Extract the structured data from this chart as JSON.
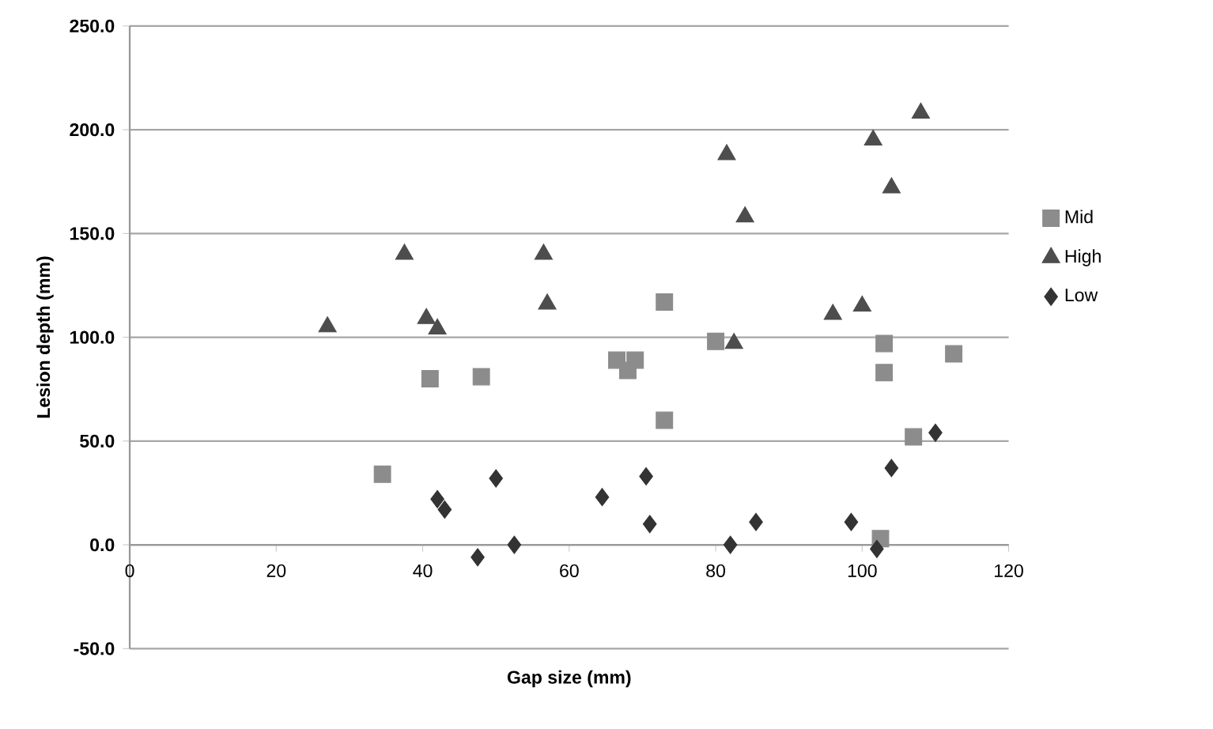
{
  "chart_data": {
    "type": "scatter",
    "xlabel": "Gap size (mm)",
    "ylabel": "Lesion depth (mm)",
    "xlim": [
      0,
      120
    ],
    "xticks": [
      0,
      20,
      40,
      60,
      80,
      100,
      120
    ],
    "ylim": [
      -50,
      250
    ],
    "yticks": [
      {
        "value": -50,
        "label": "-50.0"
      },
      {
        "value": 0,
        "label": "0.0"
      },
      {
        "value": 50,
        "label": "50.0"
      },
      {
        "value": 100,
        "label": "100.0"
      },
      {
        "value": 150,
        "label": "150.0"
      },
      {
        "value": 200,
        "label": "200.0"
      },
      {
        "value": 250,
        "label": "250.0"
      }
    ],
    "grid": "y",
    "legend": "right",
    "series": [
      {
        "name": "Mid",
        "color": "#8c8c8c",
        "marker": "square",
        "x": [
          34.5,
          41,
          48,
          66.5,
          69,
          68,
          73,
          73,
          80,
          102.5,
          103,
          103,
          107,
          112.5
        ],
        "values": [
          34,
          80,
          81,
          89,
          89,
          84,
          117,
          60,
          98,
          3,
          97,
          83,
          52,
          92
        ]
      },
      {
        "name": "High",
        "color": "#4d4d4d",
        "marker": "triangle",
        "x": [
          27,
          37.5,
          40.5,
          42,
          56.5,
          57,
          81.5,
          82.5,
          84,
          96,
          100,
          101.5,
          104,
          108
        ],
        "values": [
          105,
          140,
          109,
          104,
          140,
          116,
          188,
          97,
          158,
          111,
          115,
          195,
          172,
          208
        ]
      },
      {
        "name": "Low",
        "color": "#333333",
        "marker": "diamond",
        "x": [
          42,
          43,
          47.5,
          50,
          52.5,
          64.5,
          70.5,
          71,
          82,
          85.5,
          98.5,
          102,
          104,
          110
        ],
        "values": [
          22,
          17,
          -6,
          32,
          0,
          23,
          33,
          10,
          0,
          11,
          11,
          -2,
          37,
          54
        ]
      }
    ]
  }
}
